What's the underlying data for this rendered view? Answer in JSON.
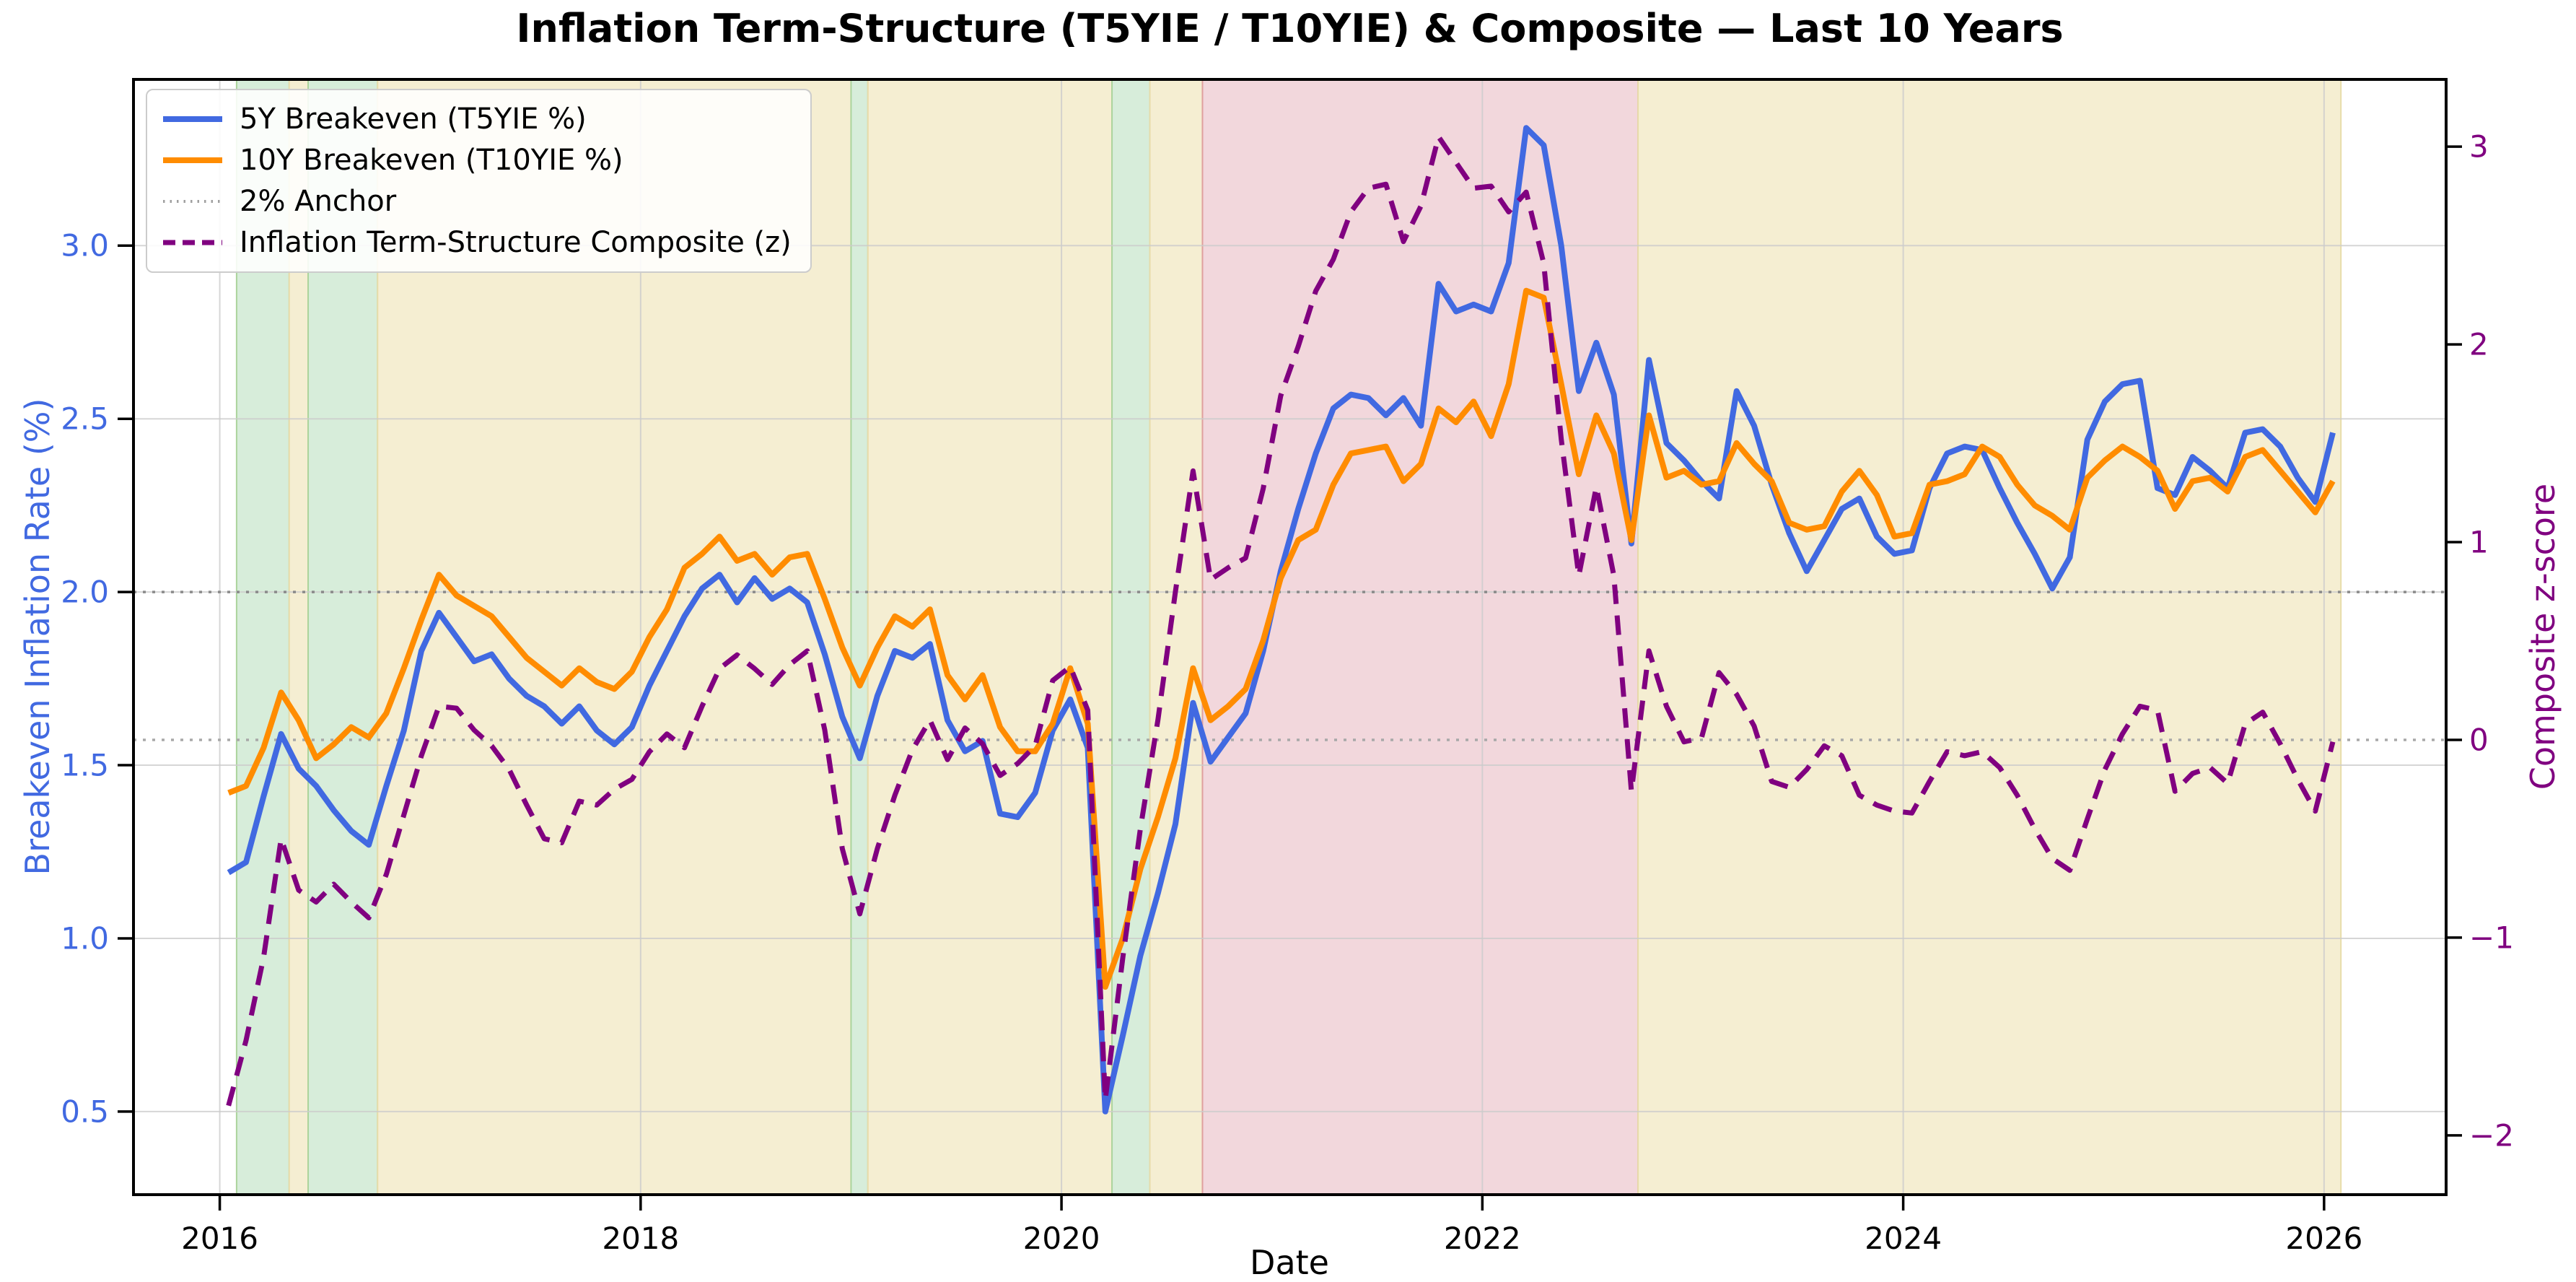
{
  "title": "Inflation Term-Structure (T5YIE / T10YIE) & Composite — Last 10 Years",
  "xlabel": "Date",
  "ylabel_left": "Breakeven Inflation Rate (%)",
  "ylabel_right": "Composite z-score",
  "colors": {
    "t5yie": "#4169E1",
    "t10yie": "#FF8C00",
    "composite": "#800080",
    "anchor_2pct": "#8a8a8a",
    "composite_zero": "#a8a8a8",
    "grid": "#cccccc",
    "spine": "#000000",
    "band_green": "#d7edda",
    "band_tan": "#f5eed2",
    "band_pink": "#f2d7dc",
    "band_green_edge": "#abd49c",
    "band_tan_edge": "#e8dcaa",
    "band_pink_edge": "#dfa09e",
    "legend_border": "#cccccc"
  },
  "legend": [
    {
      "label": "5Y Breakeven (T5YIE %)",
      "color": "#4169E1",
      "style": "solid"
    },
    {
      "label": "10Y Breakeven (T10YIE %)",
      "color": "#FF8C00",
      "style": "solid"
    },
    {
      "label": "2% Anchor",
      "color": "#a0a0a0",
      "style": "dotted"
    },
    {
      "label": "Inflation Term-Structure Composite (z)",
      "color": "#800080",
      "style": "dashed"
    }
  ],
  "chart_data": {
    "type": "line",
    "x_start_year": 2016,
    "x_monthly_points": 121,
    "x_note": "x_i = x_start_year + (i + 0.5)/12, monthly Jan 2016 through Jan 2026",
    "x_range": [
      2015.59,
      2026.58
    ],
    "x_ticks": [
      2016,
      2018,
      2020,
      2022,
      2024,
      2026
    ],
    "x_tick_labels": [
      "2016",
      "2018",
      "2020",
      "2022",
      "2024",
      "2026"
    ],
    "y_left": {
      "ticks": [
        0.5,
        1.0,
        1.5,
        2.0,
        2.5,
        3.0
      ],
      "tick_labels": [
        "0.5",
        "1.0",
        "1.5",
        "2.0",
        "2.5",
        "3.0"
      ],
      "range": [
        0.26,
        3.48
      ]
    },
    "y_right": {
      "ticks": [
        -2,
        -1,
        0,
        1,
        2,
        3
      ],
      "tick_labels": [
        "−2",
        "−1",
        "0",
        "1",
        "2",
        "3"
      ],
      "range": [
        -2.3,
        3.34
      ]
    },
    "anchor_lines": [
      {
        "name": "two-percent-anchor",
        "axis": "left",
        "value": 2.0,
        "label": "2% Anchor",
        "style": "dotted"
      },
      {
        "name": "composite-zero",
        "axis": "right",
        "value": 0.0,
        "label": "composite zero line",
        "style": "dotted"
      }
    ],
    "bands": [
      {
        "start": 2016.08,
        "end": 2016.33,
        "regime": "green"
      },
      {
        "start": 2016.33,
        "end": 2016.42,
        "regime": "tan"
      },
      {
        "start": 2016.42,
        "end": 2016.75,
        "regime": "green"
      },
      {
        "start": 2016.75,
        "end": 2019.0,
        "regime": "tan"
      },
      {
        "start": 2019.0,
        "end": 2019.08,
        "regime": "green"
      },
      {
        "start": 2019.08,
        "end": 2020.24,
        "regime": "tan"
      },
      {
        "start": 2020.24,
        "end": 2020.42,
        "regime": "green"
      },
      {
        "start": 2020.42,
        "end": 2020.67,
        "regime": "tan"
      },
      {
        "start": 2020.67,
        "end": 2022.74,
        "regime": "pink"
      },
      {
        "start": 2022.74,
        "end": 2026.08,
        "regime": "tan"
      }
    ],
    "series": [
      {
        "name": "5Y Breakeven (T5YIE %)",
        "axis": "left",
        "color": "#4169E1",
        "style": "solid",
        "values": [
          1.19,
          1.22,
          1.41,
          1.59,
          1.49,
          1.44,
          1.37,
          1.31,
          1.27,
          1.44,
          1.6,
          1.83,
          1.94,
          1.87,
          1.8,
          1.82,
          1.75,
          1.7,
          1.67,
          1.62,
          1.67,
          1.6,
          1.56,
          1.61,
          1.73,
          1.83,
          1.93,
          2.01,
          2.05,
          1.97,
          2.04,
          1.98,
          2.01,
          1.97,
          1.82,
          1.64,
          1.52,
          1.7,
          1.83,
          1.81,
          1.85,
          1.63,
          1.54,
          1.57,
          1.36,
          1.35,
          1.42,
          1.6,
          1.69,
          1.55,
          0.5,
          0.72,
          0.95,
          1.13,
          1.33,
          1.68,
          1.51,
          1.58,
          1.65,
          1.83,
          2.06,
          2.24,
          2.4,
          2.53,
          2.57,
          2.56,
          2.51,
          2.56,
          2.48,
          2.89,
          2.81,
          2.83,
          2.81,
          2.95,
          3.34,
          3.29,
          3.0,
          2.58,
          2.72,
          2.57,
          2.14,
          2.67,
          2.43,
          2.38,
          2.32,
          2.27,
          2.58,
          2.48,
          2.31,
          2.17,
          2.06,
          2.15,
          2.24,
          2.27,
          2.16,
          2.11,
          2.12,
          2.3,
          2.4,
          2.42,
          2.41,
          2.3,
          2.2,
          2.11,
          2.01,
          2.1,
          2.44,
          2.55,
          2.6,
          2.61,
          2.3,
          2.28,
          2.39,
          2.35,
          2.3,
          2.46,
          2.47,
          2.42,
          2.33,
          2.26,
          2.46
        ]
      },
      {
        "name": "10Y Breakeven (T10YIE %)",
        "axis": "left",
        "color": "#FF8C00",
        "style": "solid",
        "values": [
          1.42,
          1.44,
          1.55,
          1.71,
          1.63,
          1.52,
          1.56,
          1.61,
          1.58,
          1.65,
          1.78,
          1.92,
          2.05,
          1.99,
          1.96,
          1.93,
          1.87,
          1.81,
          1.77,
          1.73,
          1.78,
          1.74,
          1.72,
          1.77,
          1.87,
          1.95,
          2.07,
          2.11,
          2.16,
          2.09,
          2.11,
          2.05,
          2.1,
          2.11,
          1.98,
          1.84,
          1.73,
          1.84,
          1.93,
          1.9,
          1.95,
          1.76,
          1.69,
          1.76,
          1.61,
          1.54,
          1.54,
          1.62,
          1.78,
          1.62,
          0.86,
          1.0,
          1.2,
          1.35,
          1.52,
          1.78,
          1.63,
          1.67,
          1.72,
          1.86,
          2.04,
          2.15,
          2.18,
          2.31,
          2.4,
          2.41,
          2.42,
          2.32,
          2.37,
          2.53,
          2.49,
          2.55,
          2.45,
          2.6,
          2.87,
          2.85,
          2.6,
          2.34,
          2.51,
          2.4,
          2.15,
          2.51,
          2.33,
          2.35,
          2.31,
          2.32,
          2.43,
          2.37,
          2.32,
          2.2,
          2.18,
          2.19,
          2.29,
          2.35,
          2.28,
          2.16,
          2.17,
          2.31,
          2.32,
          2.34,
          2.42,
          2.39,
          2.31,
          2.25,
          2.22,
          2.18,
          2.33,
          2.38,
          2.42,
          2.39,
          2.35,
          2.24,
          2.32,
          2.33,
          2.29,
          2.39,
          2.41,
          2.35,
          2.29,
          2.23,
          2.32
        ]
      },
      {
        "name": "Inflation Term-Structure Composite (z)",
        "axis": "right",
        "color": "#800080",
        "style": "dashed",
        "values": [
          -1.85,
          -1.52,
          -1.1,
          -0.5,
          -0.76,
          -0.82,
          -0.73,
          -0.82,
          -0.9,
          -0.68,
          -0.38,
          -0.08,
          0.17,
          0.16,
          0.05,
          -0.03,
          -0.15,
          -0.33,
          -0.5,
          -0.52,
          -0.31,
          -0.33,
          -0.25,
          -0.2,
          -0.06,
          0.03,
          -0.04,
          0.17,
          0.36,
          0.43,
          0.36,
          0.28,
          0.38,
          0.45,
          0.05,
          -0.55,
          -0.88,
          -0.55,
          -0.28,
          -0.05,
          0.1,
          -0.1,
          0.06,
          -0.02,
          -0.18,
          -0.12,
          -0.03,
          0.3,
          0.37,
          0.15,
          -1.82,
          -1.1,
          -0.45,
          0.1,
          0.75,
          1.36,
          0.81,
          0.87,
          0.92,
          1.27,
          1.74,
          1.99,
          2.27,
          2.43,
          2.67,
          2.79,
          2.81,
          2.52,
          2.7,
          3.05,
          2.92,
          2.79,
          2.8,
          2.67,
          2.77,
          2.41,
          1.52,
          0.83,
          1.28,
          0.83,
          -0.26,
          0.45,
          0.17,
          -0.01,
          0.01,
          0.34,
          0.23,
          0.07,
          -0.21,
          -0.24,
          -0.15,
          -0.03,
          -0.08,
          -0.28,
          -0.33,
          -0.36,
          -0.37,
          -0.21,
          -0.06,
          -0.08,
          -0.06,
          -0.14,
          -0.28,
          -0.45,
          -0.6,
          -0.66,
          -0.4,
          -0.15,
          0.03,
          0.17,
          0.15,
          -0.26,
          -0.17,
          -0.14,
          -0.22,
          0.08,
          0.14,
          -0.02,
          -0.2,
          -0.36,
          -0.01
        ]
      }
    ]
  }
}
